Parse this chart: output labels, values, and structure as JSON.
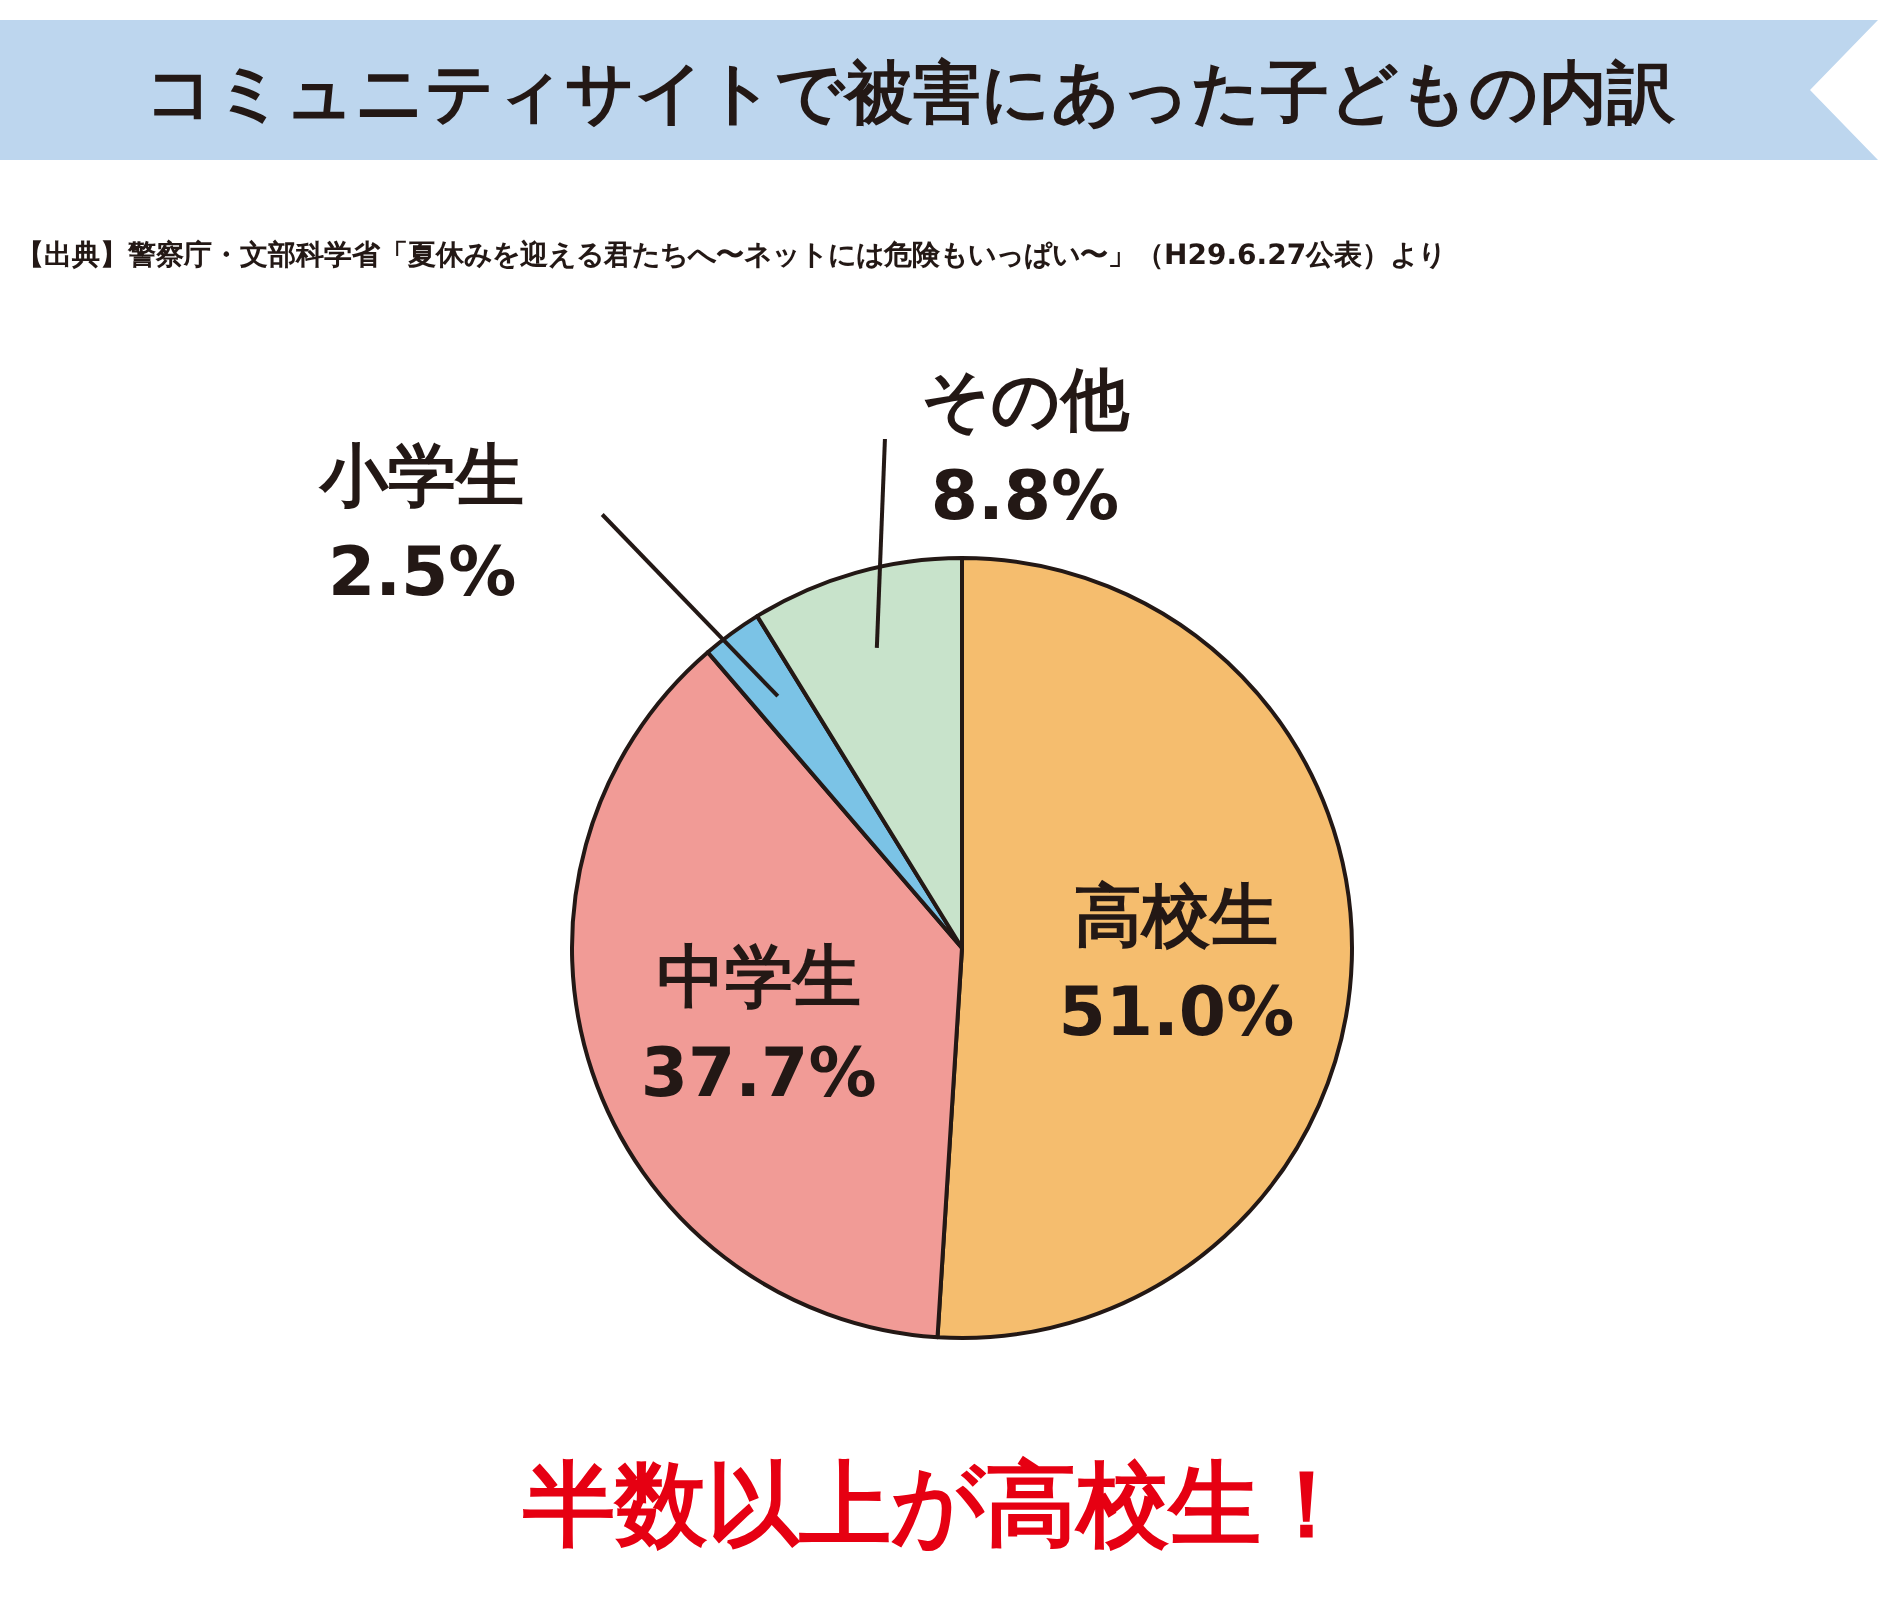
{
  "chart_data": {
    "type": "pie",
    "title": "コミュニティサイトで被害にあった子どもの内訳",
    "subtitle": "【出典】警察庁・文部科学省「夏休みを迎える君たちへ〜ネットには危険もいっぱい〜」（H29.6.27公表）より",
    "categories": [
      "高校生",
      "中学生",
      "小学生",
      "その他"
    ],
    "values": [
      51.0,
      37.7,
      2.5,
      8.8
    ],
    "value_labels": [
      "51.0%",
      "37.7%",
      "2.5%",
      "8.8%"
    ],
    "colors": [
      "#f5bd6e",
      "#f19b96",
      "#7bc3e6",
      "#c8e3cb"
    ],
    "annotations": [
      "半数以上が高校生！"
    ]
  }
}
